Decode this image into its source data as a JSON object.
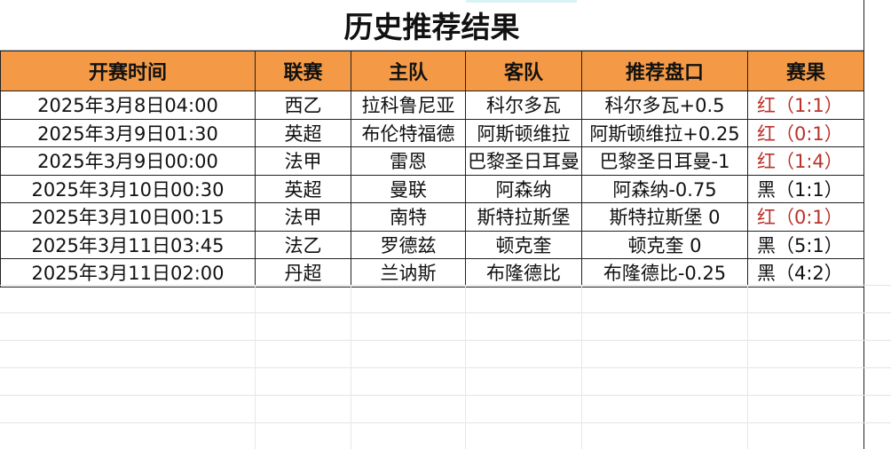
{
  "title": "历史推荐结果",
  "columns": [
    "开赛时间",
    "联赛",
    "主队",
    "客队",
    "推荐盘口",
    "赛果"
  ],
  "rows": [
    {
      "time": "2025年3月8日04:00",
      "league": "西乙",
      "home": "拉科鲁尼亚",
      "away": "科尔多瓦",
      "pick": "科尔多瓦+0.5",
      "result": "红（1:1）",
      "win": true
    },
    {
      "time": "2025年3月9日01:30",
      "league": "英超",
      "home": "布伦特福德",
      "away": "阿斯顿维拉",
      "pick": "阿斯顿维拉+0.25",
      "result": "红（0:1）",
      "win": true
    },
    {
      "time": "2025年3月9日00:00",
      "league": "法甲",
      "home": "雷恩",
      "away": "巴黎圣日耳曼",
      "pick": "巴黎圣日耳曼-1",
      "result": "红（1:4）",
      "win": true
    },
    {
      "time": "2025年3月10日00:30",
      "league": "英超",
      "home": "曼联",
      "away": "阿森纳",
      "pick": "阿森纳-0.75",
      "result": "黑（1:1）",
      "win": false
    },
    {
      "time": "2025年3月10日00:15",
      "league": "法甲",
      "home": "南特",
      "away": "斯特拉斯堡",
      "pick": "斯特拉斯堡 0",
      "result": "红（0:1）",
      "win": true
    },
    {
      "time": "2025年3月11日03:45",
      "league": "法乙",
      "home": "罗德兹",
      "away": "顿克奎",
      "pick": "顿克奎 0",
      "result": "黑（5:1）",
      "win": false
    },
    {
      "time": "2025年3月11日02:00",
      "league": "丹超",
      "home": "兰讷斯",
      "away": "布隆德比",
      "pick": "布隆德比-0.25",
      "result": "黑（4:2）",
      "win": false
    }
  ],
  "colors": {
    "header": "#f49a46",
    "win": "#b8322a",
    "loss": "#111111"
  }
}
